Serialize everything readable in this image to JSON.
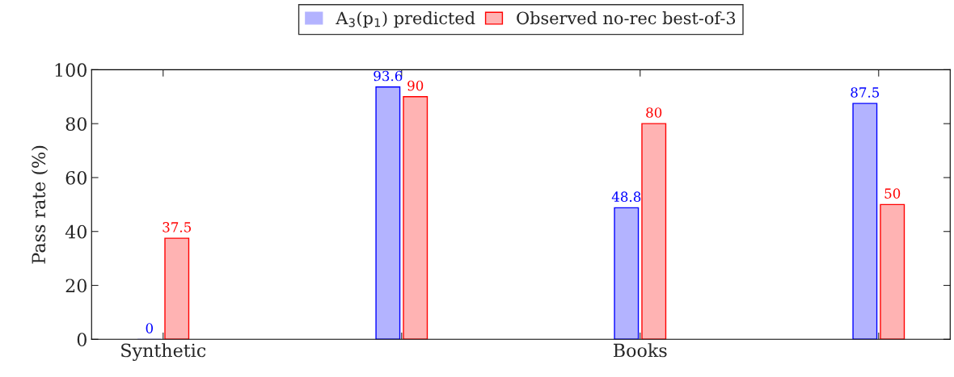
{
  "chart_data": {
    "type": "bar",
    "ylabel": "Pass rate (%)",
    "categories": [
      "Synthetic",
      null,
      "Books",
      null
    ],
    "series": [
      {
        "name": "A$_{3}$(p$_{1}$) predicted",
        "color": "#b3b3ff",
        "values": [
          0,
          93.6,
          48.8,
          87.5
        ]
      },
      {
        "name": "Observed no-rec best-of-3",
        "color": "#ffb3b3",
        "values": [
          37.5,
          90,
          80,
          50
        ]
      }
    ],
    "ylim": [
      0,
      100
    ],
    "yticks": [
      0,
      20,
      40,
      60,
      80,
      100
    ],
    "data_labels": true,
    "grid": false,
    "legend": "top"
  }
}
